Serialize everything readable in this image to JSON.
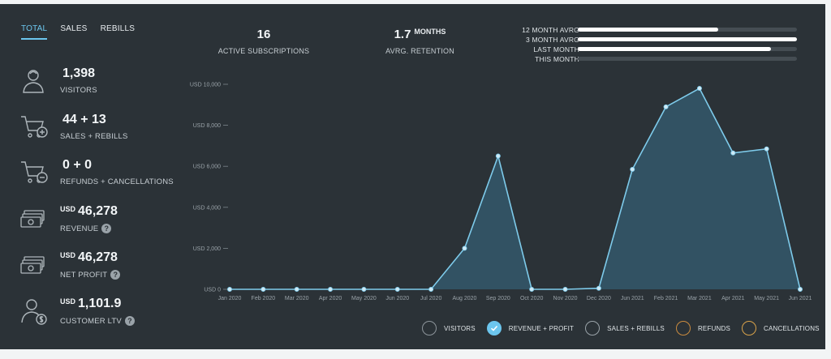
{
  "tabs": [
    {
      "label": "TOTAL",
      "active": true
    },
    {
      "label": "SALES",
      "active": false
    },
    {
      "label": "REBILLS",
      "active": false
    }
  ],
  "stats": [
    {
      "icon": "visitor-icon",
      "currency": "",
      "value": "1,398",
      "label": "VISITORS",
      "help": false
    },
    {
      "icon": "cart-add-icon",
      "currency": "",
      "value": "44 + 13",
      "label": "SALES + REBILLS",
      "help": false
    },
    {
      "icon": "cart-remove-icon",
      "currency": "",
      "value": "0 + 0",
      "label": "REFUNDS + CANCELLATIONS",
      "help": false
    },
    {
      "icon": "money-stack-icon",
      "currency": "USD",
      "value": "46,278",
      "label": "REVENUE",
      "help": true
    },
    {
      "icon": "money-stack-icon",
      "currency": "USD",
      "value": "46,278",
      "label": "NET PROFIT",
      "help": true
    },
    {
      "icon": "customer-dollar-icon",
      "currency": "USD",
      "value": "1,101.9",
      "label": "CUSTOMER LTV",
      "help": true
    }
  ],
  "help_glyph": "?",
  "metrics": {
    "active_subscriptions": {
      "value": "16",
      "unit": "",
      "caption": "ACTIVE SUBSCRIPTIONS"
    },
    "avg_retention": {
      "value": "1.7",
      "unit": "MONTHS",
      "caption": "AVRG. RETENTION"
    }
  },
  "averages": [
    {
      "label": "12 MONTH AVRG",
      "fraction": 0.64
    },
    {
      "label": "3 MONTH AVRG",
      "fraction": 1.0
    },
    {
      "label": "LAST MONTH",
      "fraction": 0.88
    },
    {
      "label": "THIS MONTH",
      "fraction": 0.0
    }
  ],
  "colors": {
    "background": "#2b3237",
    "accent": "#6cc6ee",
    "area_fill": "#34586b",
    "line": "#7ecbeb",
    "sales_rebills": "#9aa3a9",
    "refunds": "#c98b3f",
    "cancellations": "#d8a24a"
  },
  "chart_data": {
    "type": "area",
    "x": [
      "Jan 2020",
      "Feb 2020",
      "Mar 2020",
      "Apr 2020",
      "May 2020",
      "Jun 2020",
      "Jul 2020",
      "Aug 2020",
      "Sep 2020",
      "Oct 2020",
      "Nov 2020",
      "Dec 2020",
      "Jun 2021",
      "Feb 2021",
      "Mar 2021",
      "Apr 2021",
      "May 2021",
      "Jun 2021"
    ],
    "series": [
      {
        "name": "REVENUE + PROFIT",
        "values": [
          0,
          0,
          0,
          0,
          0,
          0,
          0,
          2000,
          6500,
          0,
          0,
          50,
          5850,
          8900,
          9800,
          6650,
          6850,
          0
        ]
      }
    ],
    "yticks": [
      "USD 0",
      "USD 2,000",
      "USD 4,000",
      "USD 6,000",
      "USD 8,000",
      "USD 10,000"
    ],
    "ylim": [
      0,
      10000
    ],
    "grid": false
  },
  "legend": [
    {
      "label": "VISITORS",
      "checked": false,
      "color": "#8d959b"
    },
    {
      "label": "REVENUE + PROFIT",
      "checked": true,
      "color": "#6cc6ee"
    },
    {
      "label": "SALES + REBILLS",
      "checked": false,
      "color": "#9aa3a9"
    },
    {
      "label": "REFUNDS",
      "checked": false,
      "color": "#c98b3f"
    },
    {
      "label": "CANCELLATIONS",
      "checked": false,
      "color": "#d8a24a"
    }
  ]
}
